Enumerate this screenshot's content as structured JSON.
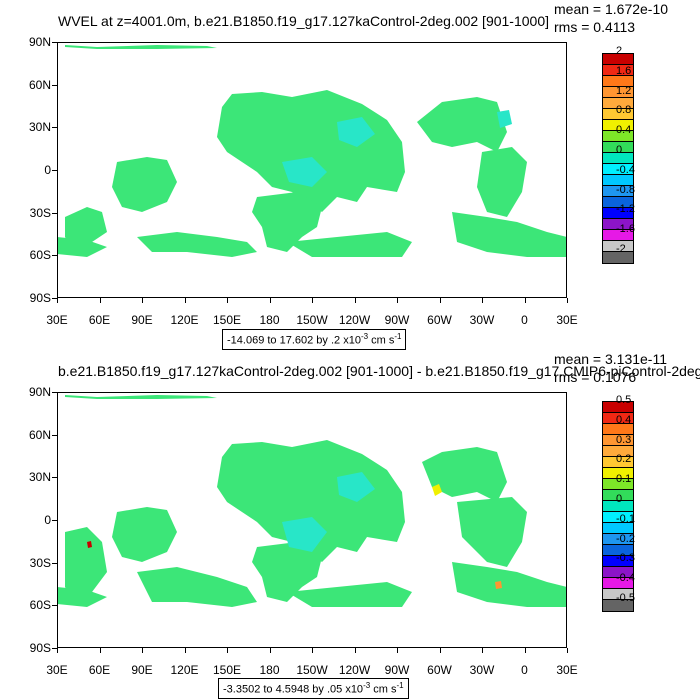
{
  "colors": {
    "palette": [
      "#646464",
      "#c8c8c8",
      "#e619e6",
      "#8c14c8",
      "#0000ff",
      "#0a64dc",
      "#1e96f0",
      "#00c8ff",
      "#00f0ff",
      "#00e6be",
      "#32dc5a",
      "#7de628",
      "#f0f000",
      "#ffc832",
      "#ffaa3c",
      "#ff9632",
      "#ff7819",
      "#f02814",
      "#c80000"
    ],
    "land_green": "#3ce678",
    "land_cyan": "#28e6c8"
  },
  "panel1": {
    "title": "WVEL at z=4001.0m, b.e21.B1850.f19_g17.127kaControl-2deg.002 [901-1000]",
    "mean": "mean = 1.672e-10",
    "rms": "rms = 0.4113",
    "range_text": "-14.069 to 17.602 by .2 x10",
    "range_exp": "-3",
    "range_unit": " cm s",
    "range_unit_exp": "-1",
    "colorbar_labels": [
      "2",
      "1.6",
      "1.2",
      "0.8",
      "0.4",
      "0",
      "-0.4",
      "-0.8",
      "-1.2",
      "-1.6",
      "-2"
    ]
  },
  "panel2": {
    "title": "b.e21.B1850.f19_g17.127kaControl-2deg.002 [901-1000] - b.e21.B1850.f19_g17.CMIP6-piControl-2deg.",
    "mean": "mean = 3.131e-11",
    "rms": "rms = 0.1076",
    "range_text": "-3.3502 to 4.5948 by .05 x10",
    "range_exp": "-3",
    "range_unit": " cm s",
    "range_unit_exp": "-1",
    "colorbar_labels": [
      "0.5",
      "0.4",
      "0.3",
      "0.2",
      "0.1",
      "0",
      "-0.1",
      "-0.2",
      "-0.3",
      "-0.4",
      "-0.5"
    ]
  },
  "lat_labels": [
    "90N",
    "60N",
    "30N",
    "0",
    "30S",
    "60S",
    "90S"
  ],
  "lon_labels": [
    "30E",
    "60E",
    "90E",
    "120E",
    "150E",
    "180",
    "150W",
    "120W",
    "90W",
    "60W",
    "30W",
    "0",
    "30E"
  ]
}
